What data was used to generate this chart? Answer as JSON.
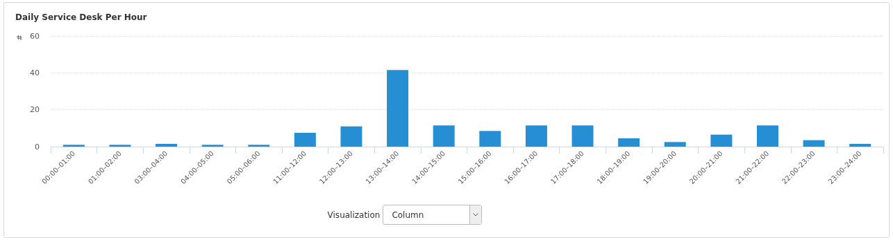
{
  "chart_data": {
    "type": "bar",
    "title": "Daily Service Desk Per Hour",
    "ylabel": "#",
    "categories": [
      "00:00–01:00",
      "01:00–02:00",
      "03:00–04:00",
      "04:00–05:00",
      "05:00–06:00",
      "11:00–12:00",
      "12:00–13:00",
      "13:00–14:00",
      "14:00–15:00",
      "15:00–16:00",
      "16:00–17:00",
      "17:00–18:00",
      "18:00–19:00",
      "19:00–20:00",
      "20:00–21:00",
      "21:00–22:00",
      "22:00–23:00",
      "23:00–24:00"
    ],
    "values": [
      1,
      1,
      1.5,
      1,
      1,
      7.5,
      11,
      41.5,
      11.5,
      8.5,
      11.5,
      11.5,
      4.5,
      2.5,
      6.5,
      11.5,
      3.5,
      1.5
    ],
    "color": "#268fd3",
    "ylim": [
      0,
      60
    ],
    "yticks": [
      0,
      20,
      40,
      60
    ],
    "grid": "y",
    "annotations": [
      "Visualization",
      "Column"
    ]
  }
}
